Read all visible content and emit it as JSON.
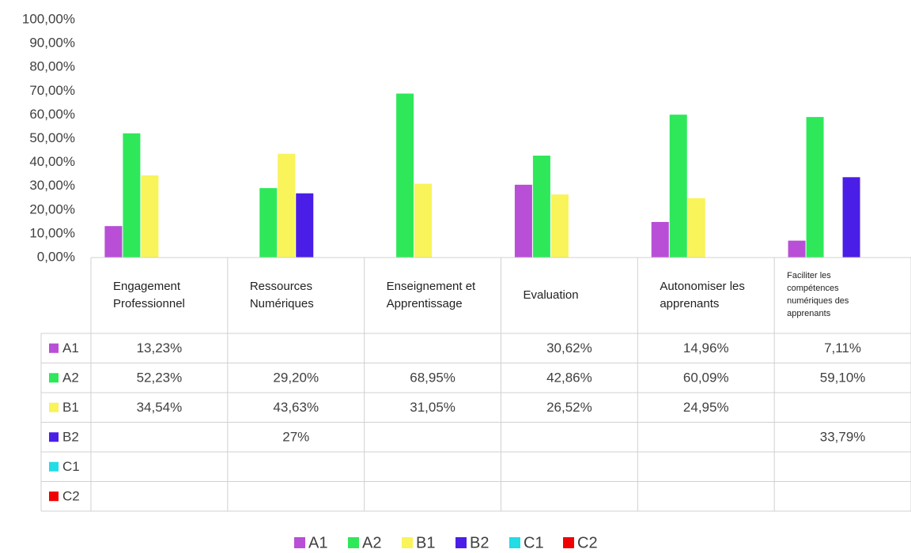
{
  "chart_data": {
    "type": "bar",
    "categories": [
      "Engagement Professionnel",
      "Ressources Numériques",
      "Enseignement et Apprentissage",
      "Evaluation",
      "Autonomiser les apprenants",
      "Faciliter les compétences numériques des apprenants"
    ],
    "series": [
      {
        "name": "A1",
        "color": "#b84fd6",
        "values": [
          13.23,
          null,
          null,
          30.62,
          14.96,
          7.11
        ],
        "value_labels": [
          "13,23%",
          null,
          null,
          "30,62%",
          "14,96%",
          "7,11%"
        ]
      },
      {
        "name": "A2",
        "color": "#2ee85a",
        "values": [
          52.23,
          29.2,
          68.95,
          42.86,
          60.09,
          59.1
        ],
        "value_labels": [
          "52,23%",
          "29,20%",
          "68,95%",
          "42,86%",
          "60,09%",
          "59,10%"
        ]
      },
      {
        "name": "B1",
        "color": "#f8f45a",
        "values": [
          34.54,
          43.63,
          31.05,
          26.52,
          24.95,
          null
        ],
        "value_labels": [
          "34,54%",
          "43,63%",
          "31,05%",
          "26,52%",
          "24,95%",
          null
        ]
      },
      {
        "name": "B2",
        "color": "#4b1ee8",
        "values": [
          null,
          27,
          null,
          null,
          null,
          33.79
        ],
        "value_labels": [
          null,
          "27%",
          null,
          null,
          null,
          "33,79%"
        ]
      },
      {
        "name": "C1",
        "color": "#22dce6",
        "values": [
          null,
          null,
          null,
          null,
          null,
          null
        ],
        "value_labels": [
          null,
          null,
          null,
          null,
          null,
          null
        ]
      },
      {
        "name": "C2",
        "color": "#f00000",
        "values": [
          null,
          null,
          null,
          null,
          null,
          null
        ],
        "value_labels": [
          null,
          null,
          null,
          null,
          null,
          null
        ]
      }
    ],
    "ylim": [
      0,
      100
    ],
    "yticks": [
      {
        "value": 0,
        "label": "0,00%"
      },
      {
        "value": 10,
        "label": "10,00%"
      },
      {
        "value": 20,
        "label": "20,00%"
      },
      {
        "value": 30,
        "label": "30,00%"
      },
      {
        "value": 40,
        "label": "40,00%"
      },
      {
        "value": 50,
        "label": "50,00%"
      },
      {
        "value": 60,
        "label": "60,00%"
      },
      {
        "value": 70,
        "label": "70,00%"
      },
      {
        "value": 80,
        "label": "80,00%"
      },
      {
        "value": 90,
        "label": "90,00%"
      },
      {
        "value": 100,
        "label": "100,00%"
      }
    ],
    "grid": false,
    "legend": "bottom",
    "data_table": true
  }
}
